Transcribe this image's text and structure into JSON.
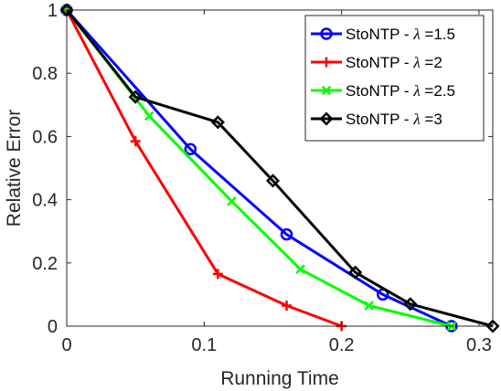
{
  "chart_data": {
    "type": "line",
    "title": "",
    "xlabel": "Running Time",
    "ylabel": "Relative Error",
    "xlim": [
      0,
      0.31
    ],
    "ylim": [
      0,
      1
    ],
    "xticks": [
      0,
      0.1,
      0.2,
      0.3
    ],
    "xtick_labels": [
      "0",
      "0.1",
      "0.2",
      "0.3"
    ],
    "yticks": [
      0,
      0.2,
      0.4,
      0.6,
      0.8,
      1
    ],
    "ytick_labels": [
      "0",
      "0.2",
      "0.4",
      "0.6",
      "0.8",
      "1"
    ],
    "grid": false,
    "legend_position": "top-right",
    "series": [
      {
        "name_prefix": "StoNTP - ",
        "name_symbol": "λ",
        "name_suffix": " =1.5",
        "color": "#0000ff",
        "marker": "circle",
        "x": [
          0,
          0.09,
          0.16,
          0.23,
          0.28
        ],
        "y": [
          1,
          0.56,
          0.29,
          0.1,
          0
        ]
      },
      {
        "name_prefix": "StoNTP - ",
        "name_symbol": "λ",
        "name_suffix": " =2",
        "color": "#ff0000",
        "marker": "plus",
        "x": [
          0,
          0.05,
          0.11,
          0.16,
          0.2
        ],
        "y": [
          1,
          0.585,
          0.165,
          0.065,
          0
        ]
      },
      {
        "name_prefix": "StoNTP - ",
        "name_symbol": "λ",
        "name_suffix": " =2.5",
        "color": "#00ff00",
        "marker": "x",
        "x": [
          0,
          0.06,
          0.12,
          0.17,
          0.22,
          0.28
        ],
        "y": [
          1,
          0.665,
          0.395,
          0.18,
          0.065,
          0
        ]
      },
      {
        "name_prefix": "StoNTP - ",
        "name_symbol": "λ",
        "name_suffix": " =3",
        "color": "#000000",
        "marker": "diamond",
        "x": [
          0,
          0.05,
          0.11,
          0.15,
          0.21,
          0.25,
          0.31
        ],
        "y": [
          1,
          0.725,
          0.645,
          0.46,
          0.17,
          0.07,
          0
        ]
      }
    ]
  }
}
